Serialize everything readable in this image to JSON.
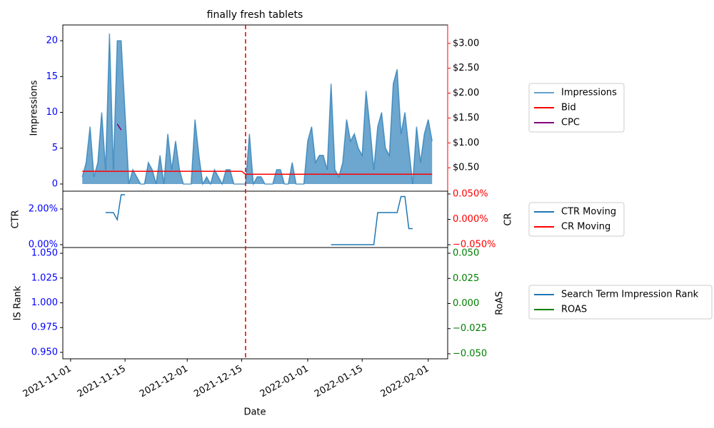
{
  "chart_data": {
    "type": "line",
    "title": "finally fresh tablets",
    "xlabel": "Date",
    "xlim": [
      "2021-10-30",
      "2022-02-06"
    ],
    "xticks": [
      "2021-11-01",
      "2021-11-15",
      "2021-12-01",
      "2021-12-15",
      "2022-01-01",
      "2022-01-15",
      "2022-02-01"
    ],
    "vline": "2021-12-16",
    "vline_color": "#ff0000",
    "legend": "right",
    "x": [
      "2021-11-04",
      "2021-11-05",
      "2021-11-06",
      "2021-11-07",
      "2021-11-08",
      "2021-11-09",
      "2021-11-10",
      "2021-11-11",
      "2021-11-12",
      "2021-11-13",
      "2021-11-14",
      "2021-11-15",
      "2021-11-16",
      "2021-11-17",
      "2021-11-18",
      "2021-11-19",
      "2021-11-20",
      "2021-11-21",
      "2021-11-22",
      "2021-11-23",
      "2021-11-24",
      "2021-11-25",
      "2021-11-26",
      "2021-11-27",
      "2021-11-28",
      "2021-11-29",
      "2021-11-30",
      "2021-12-01",
      "2021-12-02",
      "2021-12-03",
      "2021-12-04",
      "2021-12-05",
      "2021-12-06",
      "2021-12-07",
      "2021-12-08",
      "2021-12-09",
      "2021-12-10",
      "2021-12-11",
      "2021-12-12",
      "2021-12-13",
      "2021-12-14",
      "2021-12-15",
      "2021-12-16",
      "2021-12-17",
      "2021-12-18",
      "2021-12-19",
      "2021-12-20",
      "2021-12-21",
      "2021-12-22",
      "2021-12-23",
      "2021-12-24",
      "2021-12-25",
      "2021-12-26",
      "2021-12-27",
      "2021-12-28",
      "2021-12-29",
      "2021-12-30",
      "2021-12-31",
      "2022-01-01",
      "2022-01-02",
      "2022-01-03",
      "2022-01-04",
      "2022-01-05",
      "2022-01-06",
      "2022-01-07",
      "2022-01-08",
      "2022-01-09",
      "2022-01-10",
      "2022-01-11",
      "2022-01-12",
      "2022-01-13",
      "2022-01-14",
      "2022-01-15",
      "2022-01-16",
      "2022-01-17",
      "2022-01-18",
      "2022-01-19",
      "2022-01-20",
      "2022-01-21",
      "2022-01-22",
      "2022-01-23",
      "2022-01-24",
      "2022-01-25",
      "2022-01-26",
      "2022-01-27",
      "2022-01-28",
      "2022-01-29",
      "2022-01-30",
      "2022-01-31",
      "2022-02-01",
      "2022-02-02"
    ],
    "panels": [
      {
        "ylabel": "Impressions",
        "ylim": [
          -1.0,
          22.2
        ],
        "yticks": [
          0,
          5,
          10,
          15,
          20
        ],
        "ytick_color": "#0000ff",
        "y2lim": [
          0.03,
          3.37
        ],
        "y2ticks": [
          {
            "value": 0.5,
            "label": "$0.50"
          },
          {
            "value": 1.0,
            "label": "$1.00"
          },
          {
            "value": 1.5,
            "label": "$1.50"
          },
          {
            "value": 2.0,
            "label": "$2.00"
          },
          {
            "value": 2.5,
            "label": "$2.50"
          },
          {
            "value": 3.0,
            "label": "$3.00"
          }
        ],
        "y2tick_color": "#000000",
        "y2spine_color": "#ff0000",
        "series": [
          {
            "name": "Impressions",
            "color": "#1f77b4",
            "area": true,
            "axis": "y",
            "values": [
              1,
              3,
              8,
              1,
              3,
              10,
              2,
              21,
              2,
              20,
              20,
              10,
              0,
              2,
              1,
              0,
              0,
              3,
              2,
              0,
              4,
              0,
              7,
              2,
              6,
              2,
              0,
              0,
              0,
              9,
              4,
              0,
              1,
              0,
              2,
              1,
              0,
              2,
              2,
              0,
              0,
              0,
              0,
              7,
              0,
              1,
              1,
              0,
              0,
              0,
              2,
              2,
              0,
              0,
              3,
              0,
              0,
              0,
              6,
              8,
              3,
              4,
              4,
              2,
              14,
              2,
              1,
              3,
              9,
              6,
              7,
              5,
              4,
              13,
              8,
              2,
              8,
              10,
              5,
              4,
              14,
              16,
              7,
              10,
              5,
              0,
              8,
              3,
              7,
              9,
              6
            ]
          },
          {
            "name": "Bid",
            "color": "#ff0000",
            "axis": "y2",
            "values": [
              0.43,
              0.43,
              0.43,
              0.43,
              0.43,
              0.43,
              0.43,
              0.43,
              0.43,
              0.43,
              0.43,
              0.43,
              0.43,
              0.43,
              0.43,
              0.43,
              0.43,
              0.43,
              0.43,
              0.43,
              0.43,
              0.43,
              0.43,
              0.43,
              0.43,
              0.43,
              0.43,
              0.43,
              0.43,
              0.43,
              0.43,
              0.43,
              0.43,
              0.43,
              0.43,
              0.43,
              0.43,
              0.43,
              0.43,
              0.43,
              0.43,
              0.43,
              0.37,
              0.37,
              0.37,
              0.37,
              0.37,
              0.37,
              0.37,
              0.37,
              0.37,
              0.37,
              0.37,
              0.37,
              0.37,
              0.37,
              0.37,
              0.37,
              0.37,
              0.37,
              0.37,
              0.37,
              0.37,
              0.37,
              0.37,
              0.37,
              0.37,
              0.37,
              0.37,
              0.37,
              0.37,
              0.37,
              0.37,
              0.37,
              0.37,
              0.37,
              0.37,
              0.37,
              0.37,
              0.37,
              0.37,
              0.37,
              0.37,
              0.37,
              0.37,
              0.37,
              0.37,
              0.37,
              0.37,
              0.37,
              0.37
            ]
          },
          {
            "name": "CPC",
            "color": "#800080",
            "axis": "y2",
            "values": [
              null,
              null,
              null,
              null,
              null,
              null,
              null,
              null,
              null,
              1.38,
              1.26,
              null,
              null,
              null,
              null,
              null,
              null,
              null,
              null,
              null,
              null,
              null,
              null,
              null,
              null,
              null,
              null,
              null,
              null,
              null,
              null,
              null,
              null,
              null,
              null,
              null,
              null,
              null,
              null,
              null,
              null,
              null,
              null,
              null,
              null,
              null,
              null,
              null,
              null,
              null,
              null,
              null,
              null,
              null,
              null,
              null,
              null,
              null,
              null,
              null,
              null,
              null,
              null,
              null,
              null,
              null,
              null,
              null,
              null,
              null,
              null,
              null,
              null,
              null,
              null,
              null,
              null,
              null,
              null,
              null,
              null,
              null,
              null,
              null,
              null,
              null,
              null,
              null,
              null,
              null,
              null
            ]
          }
        ]
      },
      {
        "ylabel": "CTR",
        "ylim": [
          -0.16,
          3.0
        ],
        "yticks": [
          {
            "value": 0,
            "label": "0.00%"
          },
          {
            "value": 2,
            "label": "2.00%"
          }
        ],
        "ytick_color": "#0000ff",
        "y2label": "CR",
        "y2lim": [
          -0.0556,
          0.0556
        ],
        "y2ticks": [
          {
            "value": -0.05,
            "label": "−0.050%"
          },
          {
            "value": 0,
            "label": "0.000%"
          },
          {
            "value": 0.05,
            "label": "0.050%"
          }
        ],
        "y2tick_color": "#ff0000",
        "series": [
          {
            "name": "CTR Moving",
            "color": "#1f77b4",
            "axis": "y",
            "values": [
              null,
              null,
              null,
              null,
              null,
              null,
              1.8,
              1.8,
              1.8,
              1.4,
              2.8,
              2.8,
              null,
              null,
              null,
              null,
              null,
              null,
              null,
              null,
              null,
              null,
              null,
              null,
              null,
              null,
              null,
              null,
              null,
              null,
              null,
              null,
              null,
              null,
              null,
              null,
              null,
              null,
              null,
              null,
              null,
              null,
              null,
              null,
              null,
              null,
              null,
              null,
              null,
              null,
              null,
              null,
              null,
              null,
              null,
              null,
              null,
              null,
              null,
              null,
              null,
              null,
              null,
              null,
              0,
              0,
              0,
              0,
              0,
              0,
              0,
              0,
              0,
              0,
              0,
              0,
              1.8,
              1.8,
              1.8,
              1.8,
              1.8,
              1.8,
              2.7,
              2.7,
              0.9,
              0.9,
              null,
              null,
              null,
              null,
              null
            ]
          },
          {
            "name": "CR Moving",
            "color": "#ff0000",
            "axis": "y2",
            "values": [
              null,
              null,
              null,
              null,
              null,
              null,
              null,
              null,
              null,
              null,
              null,
              null,
              null,
              null,
              null,
              null,
              null,
              null,
              null,
              null,
              null,
              null,
              null,
              null,
              null,
              null,
              null,
              null,
              null,
              null,
              null,
              null,
              null,
              null,
              null,
              null,
              null,
              null,
              null,
              null,
              null,
              null,
              null,
              null,
              null,
              null,
              null,
              null,
              null,
              null,
              null,
              null,
              null,
              null,
              null,
              null,
              null,
              null,
              null,
              null,
              null,
              null,
              null,
              null,
              null,
              null,
              null,
              null,
              null,
              null,
              null,
              null,
              null,
              null,
              null,
              null,
              null,
              null,
              null,
              null,
              null,
              null,
              null,
              null,
              null,
              null,
              null,
              null,
              null,
              null,
              null
            ]
          }
        ]
      },
      {
        "ylabel": "IS Rank",
        "ylim": [
          0.9435,
          1.0558
        ],
        "yticks": [
          {
            "value": 0.95,
            "label": "0.950"
          },
          {
            "value": 0.975,
            "label": "0.975"
          },
          {
            "value": 1.0,
            "label": "1.000"
          },
          {
            "value": 1.025,
            "label": "1.025"
          },
          {
            "value": 1.05,
            "label": "1.050"
          }
        ],
        "ytick_color": "#0000ff",
        "y2label": "RoAS",
        "y2lim": [
          -0.055,
          0.0557
        ],
        "y2ticks": [
          {
            "value": -0.05,
            "label": "−0.050"
          },
          {
            "value": -0.025,
            "label": "−0.025"
          },
          {
            "value": 0,
            "label": "0.000"
          },
          {
            "value": 0.025,
            "label": "0.025"
          },
          {
            "value": 0.05,
            "label": "0.050"
          }
        ],
        "y2tick_color": "#008000",
        "series": [
          {
            "name": "Search Term Impression Rank",
            "color": "#1f77b4",
            "axis": "y",
            "values": [
              null,
              null,
              null,
              null,
              null,
              null,
              null,
              null,
              null,
              null,
              null,
              null,
              null,
              null,
              null,
              null,
              null,
              null,
              null,
              null,
              null,
              null,
              null,
              null,
              null,
              null,
              null,
              null,
              null,
              null,
              null,
              null,
              null,
              null,
              null,
              null,
              null,
              null,
              null,
              null,
              null,
              null,
              null,
              null,
              null,
              null,
              null,
              null,
              null,
              null,
              null,
              null,
              null,
              null,
              null,
              null,
              null,
              null,
              null,
              null,
              null,
              null,
              null,
              null,
              null,
              null,
              null,
              null,
              null,
              null,
              null,
              null,
              null,
              null,
              null,
              null,
              null,
              null,
              null,
              null,
              null,
              null,
              null,
              null,
              null,
              null,
              null,
              null,
              null,
              null,
              null
            ]
          },
          {
            "name": "ROAS",
            "color": "#008000",
            "axis": "y2",
            "values": [
              null,
              null,
              null,
              null,
              null,
              null,
              null,
              null,
              null,
              null,
              null,
              null,
              null,
              null,
              null,
              null,
              null,
              null,
              null,
              null,
              null,
              null,
              null,
              null,
              null,
              null,
              null,
              null,
              null,
              null,
              null,
              null,
              null,
              null,
              null,
              null,
              null,
              null,
              null,
              null,
              null,
              null,
              null,
              null,
              null,
              null,
              null,
              null,
              null,
              null,
              null,
              null,
              null,
              null,
              null,
              null,
              null,
              null,
              null,
              null,
              null,
              null,
              null,
              null,
              null,
              null,
              null,
              null,
              null,
              null,
              null,
              null,
              null,
              null,
              null,
              null,
              null,
              null,
              null,
              null,
              null,
              null,
              null,
              null,
              null,
              null,
              null,
              null,
              null,
              null,
              null
            ]
          }
        ]
      }
    ]
  }
}
